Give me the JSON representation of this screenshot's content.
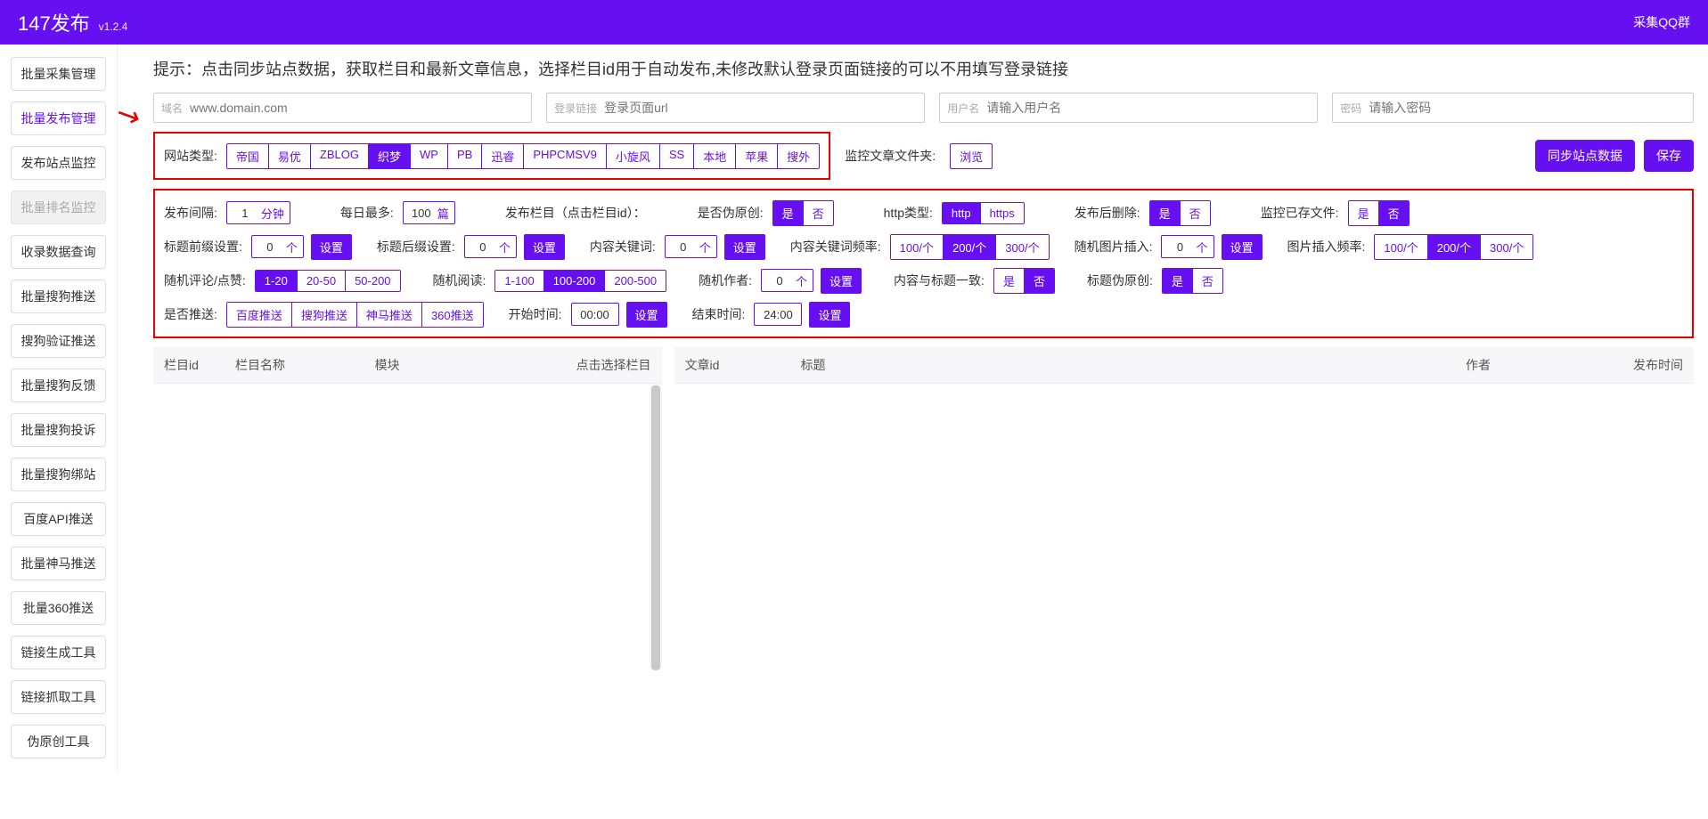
{
  "header": {
    "title": "147发布",
    "version": "v1.2.4",
    "rightLink": "采集QQ群"
  },
  "sidebar": [
    "批量采集管理",
    "批量发布管理",
    "发布站点监控",
    "批量排名监控",
    "收录数据查询",
    "批量搜狗推送",
    "搜狗验证推送",
    "批量搜狗反馈",
    "批量搜狗投诉",
    "批量搜狗绑站",
    "百度API推送",
    "批量神马推送",
    "批量360推送",
    "链接生成工具",
    "链接抓取工具",
    "伪原创工具"
  ],
  "sidebarActive": 1,
  "sidebarDisabled": 3,
  "hint": "提示：点击同步站点数据，获取栏目和最新文章信息，选择栏目id用于自动发布,未修改默认登录页面链接的可以不用填写登录链接",
  "inputs": {
    "domain": {
      "label": "域名",
      "placeholder": "www.domain.com"
    },
    "loginUrl": {
      "label": "登录链接",
      "placeholder": "登录页面url"
    },
    "username": {
      "label": "用户名",
      "placeholder": "请输入用户名"
    },
    "password": {
      "label": "密码",
      "placeholder": "请输入密码"
    }
  },
  "siteType": {
    "label": "网站类型:",
    "options": [
      "帝国",
      "易优",
      "ZBLOG",
      "织梦",
      "WP",
      "PB",
      "迅睿",
      "PHPCMSV9",
      "小旋风",
      "SS",
      "本地",
      "苹果",
      "搜外"
    ],
    "selected": 3
  },
  "monitorFolder": {
    "label": "监控文章文件夹:",
    "btn": "浏览"
  },
  "actions": {
    "sync": "同步站点数据",
    "save": "保存"
  },
  "settings": {
    "interval": {
      "label": "发布间隔:",
      "value": "1",
      "unit": "分钟"
    },
    "dailyMax": {
      "label": "每日最多:",
      "value": "100",
      "unit": "篇"
    },
    "columnLabel": "发布栏目（点击栏目id）：",
    "fakeOriginal": {
      "label": "是否伪原创:",
      "options": [
        "是",
        "否"
      ],
      "selected": 0
    },
    "httpType": {
      "label": "http类型:",
      "options": [
        "http",
        "https"
      ],
      "selected": 0
    },
    "deleteAfter": {
      "label": "发布后删除:",
      "options": [
        "是",
        "否"
      ],
      "selected": 0
    },
    "monitorExist": {
      "label": "监控已存文件:",
      "options": [
        "是",
        "否"
      ],
      "selected": 1
    },
    "titlePrefix": {
      "label": "标题前缀设置:",
      "value": "0",
      "unit": "个",
      "btn": "设置"
    },
    "titleSuffix": {
      "label": "标题后缀设置:",
      "value": "0",
      "unit": "个",
      "btn": "设置"
    },
    "contentKeyword": {
      "label": "内容关键词:",
      "value": "0",
      "unit": "个",
      "btn": "设置"
    },
    "keywordFreq": {
      "label": "内容关键词频率:",
      "options": [
        "100/个",
        "200/个",
        "300/个"
      ],
      "selected": 1
    },
    "randomImage": {
      "label": "随机图片插入:",
      "value": "0",
      "unit": "个",
      "btn": "设置"
    },
    "imageFreq": {
      "label": "图片插入频率:",
      "options": [
        "100/个",
        "200/个",
        "300/个"
      ],
      "selected": 1
    },
    "randomComment": {
      "label": "随机评论/点赞:",
      "options": [
        "1-20",
        "20-50",
        "50-200"
      ],
      "selected": 0
    },
    "randomRead": {
      "label": "随机阅读:",
      "options": [
        "1-100",
        "100-200",
        "200-500"
      ],
      "selected": 1
    },
    "randomAuthor": {
      "label": "随机作者:",
      "value": "0",
      "unit": "个",
      "btn": "设置"
    },
    "contentTitle": {
      "label": "内容与标题一致:",
      "options": [
        "是",
        "否"
      ],
      "selected": 1
    },
    "titleFake": {
      "label": "标题伪原创:",
      "options": [
        "是",
        "否"
      ],
      "selected": 0
    },
    "pushLabel": "是否推送:",
    "pushOptions": [
      "百度推送",
      "搜狗推送",
      "神马推送",
      "360推送"
    ],
    "startTime": {
      "label": "开始时间:",
      "value": "00:00",
      "btn": "设置"
    },
    "endTime": {
      "label": "结束时间:",
      "value": "24:00",
      "btn": "设置"
    }
  },
  "tableLeft": {
    "headers": [
      "栏目id",
      "栏目名称",
      "模块",
      "点击选择栏目"
    ]
  },
  "tableRight": {
    "headers": [
      "文章id",
      "标题",
      "作者",
      "发布时间"
    ]
  }
}
